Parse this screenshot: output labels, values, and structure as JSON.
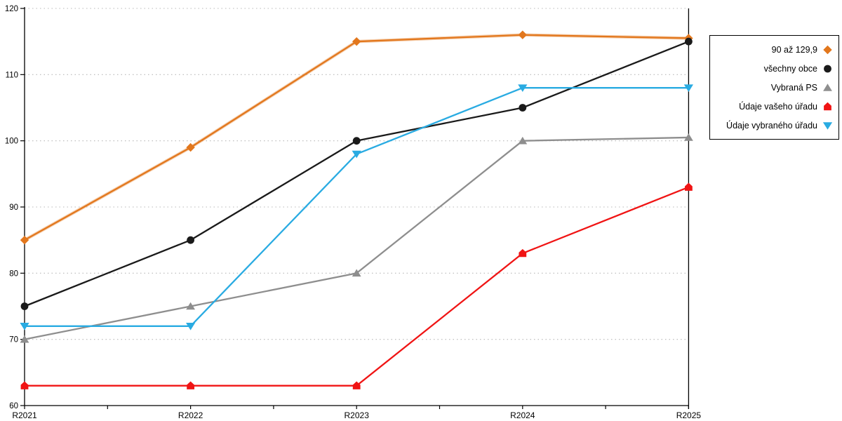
{
  "chart_data": {
    "type": "line",
    "title": "",
    "xlabel": "",
    "ylabel": "",
    "categories": [
      "R2021",
      "R2022",
      "R2023",
      "R2024",
      "R2025"
    ],
    "series": [
      {
        "name": "90 až 129,9",
        "marker": "diamond",
        "color": "#e2771d",
        "halo": true,
        "values": [
          85,
          99,
          115,
          116,
          115.5
        ]
      },
      {
        "name": "všechny obce",
        "marker": "circle",
        "color": "#1a1a1a",
        "halo": false,
        "values": [
          75,
          85,
          100,
          105,
          115
        ]
      },
      {
        "name": "Vybraná PS",
        "marker": "triangle-up",
        "color": "#8e8e8e",
        "halo": false,
        "values": [
          70,
          75,
          80,
          100,
          100.5
        ]
      },
      {
        "name": "Údaje vašeho úřadu",
        "marker": "house",
        "color": "#f01414",
        "halo": false,
        "values": [
          63,
          63,
          63,
          83,
          93
        ]
      },
      {
        "name": "Údaje vybraného úřadu",
        "marker": "triangle-down",
        "color": "#29abe2",
        "halo": false,
        "values": [
          72,
          72,
          98,
          108,
          108
        ]
      }
    ],
    "ylim": [
      60,
      120
    ],
    "y_ticks": [
      60,
      70,
      80,
      90,
      100,
      110,
      120
    ],
    "grid": "horizontal-dotted",
    "gridline_color": "#b8b8b8",
    "axis_color": "#000000",
    "legend_position": "right"
  }
}
